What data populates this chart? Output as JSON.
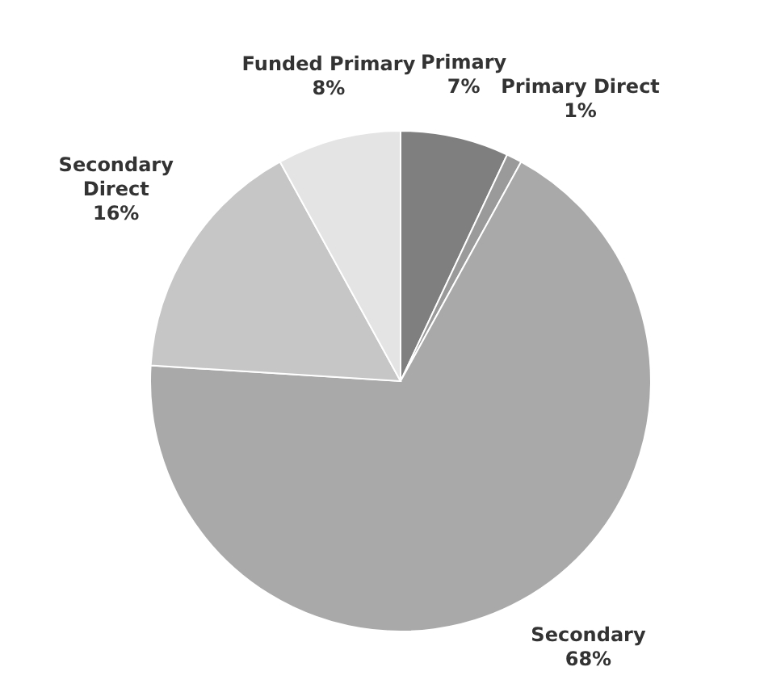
{
  "chart_data": {
    "type": "pie",
    "categories": [
      "Primary",
      "Primary Direct",
      "Secondary",
      "Secondary Direct",
      "Funded Primary"
    ],
    "values": [
      7,
      1,
      68,
      16,
      8
    ],
    "value_labels": [
      "7%",
      "1%",
      "68%",
      "16%",
      "8%"
    ],
    "colors": [
      "#7f7f7f",
      "#9a9a9a",
      "#a9a9a9",
      "#c6c6c6",
      "#e4e4e4"
    ]
  }
}
